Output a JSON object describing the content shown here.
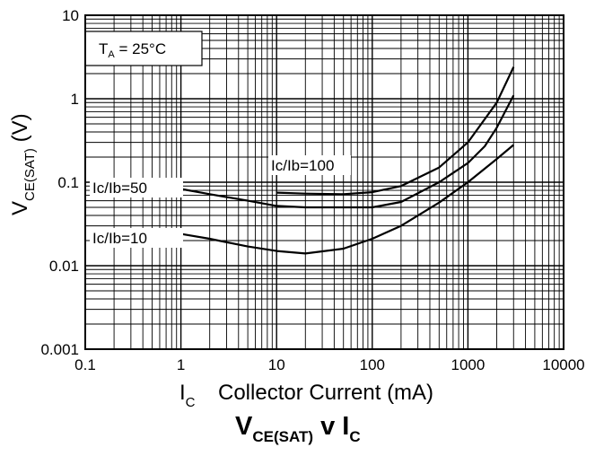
{
  "chart_data": {
    "type": "line",
    "title": {
      "main": "V",
      "main_sub": "CE(SAT)",
      "mid": " v I",
      "end_sub": "C"
    },
    "xlabel": {
      "symbol": "I",
      "sub": "C",
      "text": "Collector Current (mA)"
    },
    "ylabel": {
      "symbol": "V",
      "sub": "CE(SAT)",
      "unit": " (V)"
    },
    "x_scale": "log",
    "y_scale": "log",
    "xlim": [
      0.1,
      10000
    ],
    "ylim": [
      0.001,
      10
    ],
    "x_ticks": [
      "0.1",
      "1",
      "10",
      "100",
      "1000",
      "10000"
    ],
    "y_ticks": [
      "0.001",
      "0.01",
      "0.1",
      "1",
      "10"
    ],
    "grid": true,
    "annotation": {
      "prefix": "T",
      "sub": "A",
      "suffix": " = 25°C"
    },
    "series": [
      {
        "name": "Ic/Ib=10",
        "x": [
          1,
          2,
          5,
          10,
          20,
          50,
          100,
          200,
          500,
          1000,
          2000,
          3000
        ],
        "y": [
          0.024,
          0.021,
          0.017,
          0.015,
          0.014,
          0.016,
          0.021,
          0.03,
          0.057,
          0.1,
          0.19,
          0.28
        ]
      },
      {
        "name": "Ic/Ib=50",
        "x": [
          1,
          2,
          5,
          10,
          20,
          50,
          100,
          200,
          500,
          1000,
          1500,
          2000,
          3000
        ],
        "y": [
          0.083,
          0.072,
          0.06,
          0.052,
          0.05,
          0.05,
          0.05,
          0.058,
          0.1,
          0.17,
          0.27,
          0.45,
          1.1
        ]
      },
      {
        "name": "Ic/Ib=100",
        "x": [
          10,
          20,
          50,
          100,
          200,
          500,
          1000,
          2000,
          3000
        ],
        "y": [
          0.075,
          0.073,
          0.072,
          0.076,
          0.09,
          0.15,
          0.3,
          0.9,
          2.4
        ]
      }
    ],
    "colors": {
      "line": "#000000",
      "grid": "#000000",
      "background": "#ffffff"
    }
  }
}
